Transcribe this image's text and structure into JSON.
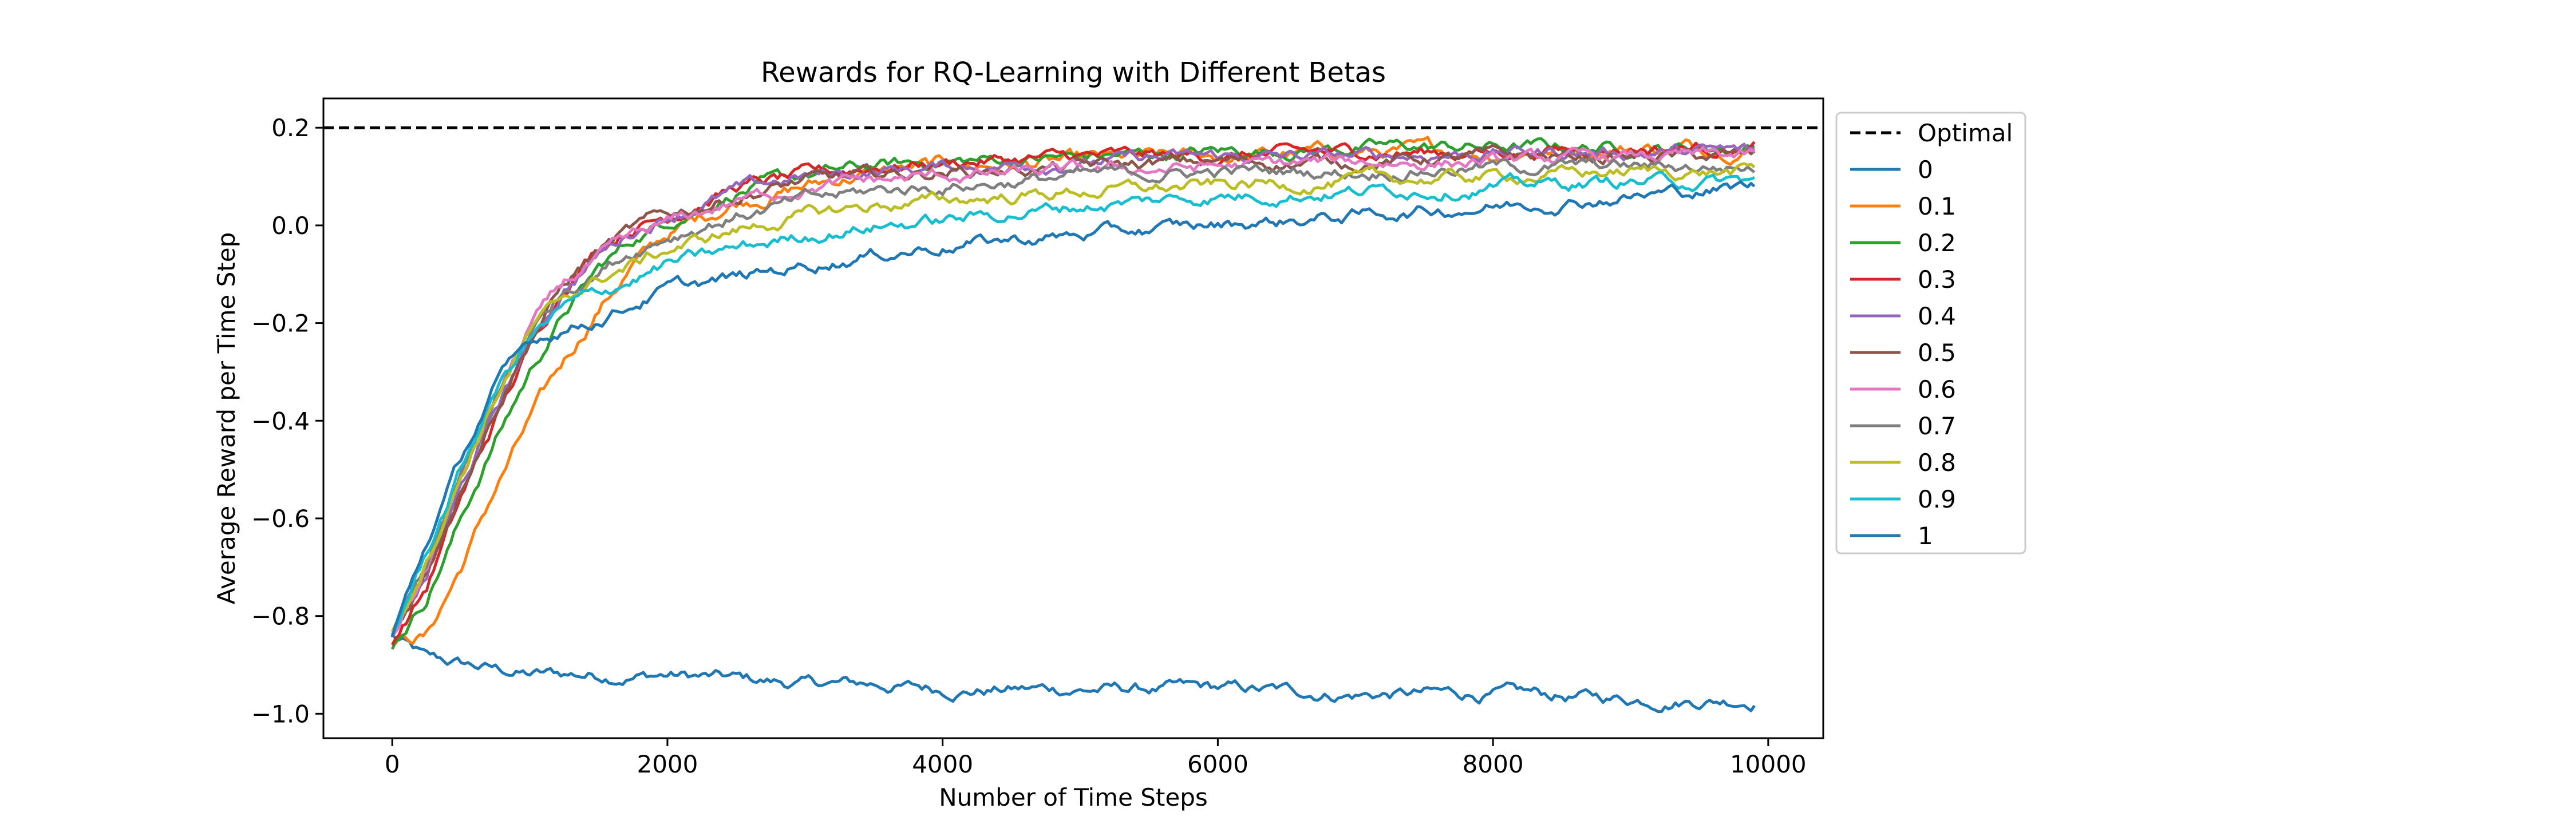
{
  "chart_data": {
    "type": "line",
    "title": "Rewards for RQ-Learning with Different Betas",
    "xlabel": "Number of Time Steps",
    "ylabel": "Average Reward per Time Step",
    "xlim": [
      -500,
      10400
    ],
    "ylim": [
      -1.05,
      0.26
    ],
    "xticks": [
      0,
      2000,
      4000,
      6000,
      8000,
      10000
    ],
    "yticks": [
      -1.0,
      -0.8,
      -0.6,
      -0.4,
      -0.2,
      0.0,
      0.2
    ],
    "xtick_labels": [
      "0",
      "2000",
      "4000",
      "6000",
      "8000",
      "10000"
    ],
    "ytick_labels": [
      "−1.0",
      "−0.8",
      "−0.6",
      "−0.4",
      "−0.2",
      "0.0",
      "0.2"
    ],
    "grid": false,
    "legend_position": "outside-right-top",
    "optimal": {
      "name": "Optimal",
      "y": 0.2,
      "color": "#000000"
    },
    "x": [
      0,
      250,
      500,
      750,
      1000,
      1250,
      1500,
      1750,
      2000,
      2500,
      3000,
      3500,
      4000,
      5000,
      6000,
      7000,
      8000,
      9000,
      9900
    ],
    "series": [
      {
        "name": "0",
        "color": "#1f77b4",
        "noise": 0.008,
        "values": [
          -0.84,
          -0.89,
          -0.9,
          -0.91,
          -0.92,
          -0.92,
          -0.92,
          -0.92,
          -0.92,
          -0.93,
          -0.94,
          -0.94,
          -0.95,
          -0.95,
          -0.95,
          -0.96,
          -0.96,
          -0.97,
          -0.97
        ]
      },
      {
        "name": "0.1",
        "color": "#ff7f0e",
        "noise": 0.009,
        "values": [
          -0.85,
          -0.84,
          -0.7,
          -0.54,
          -0.4,
          -0.28,
          -0.17,
          -0.08,
          -0.02,
          0.05,
          0.08,
          0.11,
          0.12,
          0.13,
          0.14,
          0.15,
          0.15,
          0.16,
          0.16
        ]
      },
      {
        "name": "0.2",
        "color": "#2ca02c",
        "noise": 0.008,
        "values": [
          -0.86,
          -0.76,
          -0.6,
          -0.44,
          -0.3,
          -0.18,
          -0.09,
          -0.03,
          0.01,
          0.07,
          0.1,
          0.12,
          0.13,
          0.14,
          0.15,
          0.16,
          0.16,
          0.16,
          0.16
        ]
      },
      {
        "name": "0.3",
        "color": "#d62728",
        "noise": 0.008,
        "values": [
          -0.85,
          -0.74,
          -0.56,
          -0.4,
          -0.25,
          -0.12,
          -0.04,
          0.0,
          0.02,
          0.08,
          0.1,
          0.12,
          0.13,
          0.14,
          0.14,
          0.15,
          0.15,
          0.16,
          0.16
        ]
      },
      {
        "name": "0.4",
        "color": "#9467bd",
        "noise": 0.008,
        "values": [
          -0.84,
          -0.72,
          -0.54,
          -0.38,
          -0.24,
          -0.13,
          -0.06,
          -0.01,
          0.02,
          0.07,
          0.1,
          0.11,
          0.12,
          0.13,
          0.14,
          0.14,
          0.15,
          0.15,
          0.15
        ]
      },
      {
        "name": "0.5",
        "color": "#8c564b",
        "noise": 0.008,
        "values": [
          -0.84,
          -0.71,
          -0.53,
          -0.37,
          -0.23,
          -0.12,
          -0.05,
          -0.01,
          0.02,
          0.06,
          0.09,
          0.1,
          0.11,
          0.12,
          0.13,
          0.13,
          0.14,
          0.14,
          0.14
        ]
      },
      {
        "name": "0.6",
        "color": "#e377c2",
        "noise": 0.008,
        "values": [
          -0.84,
          -0.7,
          -0.52,
          -0.36,
          -0.21,
          -0.12,
          -0.07,
          -0.03,
          0.0,
          0.05,
          0.08,
          0.09,
          0.1,
          0.11,
          0.12,
          0.13,
          0.13,
          0.14,
          0.14
        ]
      },
      {
        "name": "0.7",
        "color": "#7f7f7f",
        "noise": 0.008,
        "values": [
          -0.84,
          -0.69,
          -0.52,
          -0.36,
          -0.22,
          -0.13,
          -0.09,
          -0.05,
          -0.02,
          0.02,
          0.05,
          0.07,
          0.08,
          0.1,
          0.11,
          0.11,
          0.12,
          0.12,
          0.12
        ]
      },
      {
        "name": "0.8",
        "color": "#bcbd22",
        "noise": 0.008,
        "values": [
          -0.84,
          -0.68,
          -0.51,
          -0.35,
          -0.22,
          -0.15,
          -0.11,
          -0.08,
          -0.05,
          -0.01,
          0.02,
          0.04,
          0.05,
          0.07,
          0.08,
          0.09,
          0.1,
          0.11,
          0.11
        ]
      },
      {
        "name": "0.9",
        "color": "#17becf",
        "noise": 0.008,
        "values": [
          -0.84,
          -0.67,
          -0.5,
          -0.34,
          -0.23,
          -0.17,
          -0.14,
          -0.11,
          -0.08,
          -0.05,
          -0.02,
          0.0,
          0.01,
          0.04,
          0.06,
          0.07,
          0.08,
          0.09,
          0.09
        ]
      },
      {
        "name": "1",
        "color": "#1f77b4",
        "noise": 0.008,
        "values": [
          -0.84,
          -0.65,
          -0.48,
          -0.33,
          -0.24,
          -0.21,
          -0.19,
          -0.16,
          -0.13,
          -0.11,
          -0.08,
          -0.06,
          -0.04,
          -0.02,
          0.0,
          0.02,
          0.04,
          0.06,
          0.08
        ]
      }
    ]
  }
}
